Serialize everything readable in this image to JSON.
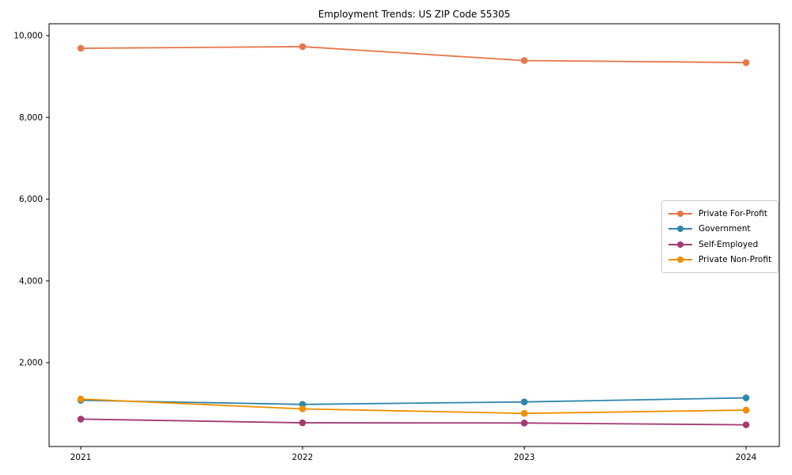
{
  "title": "Employment Trends: US ZIP Code 55305",
  "chart_data": {
    "type": "line",
    "title": "Employment Trends: US ZIP Code 55305",
    "xlabel": "",
    "ylabel": "",
    "x": [
      2021,
      2022,
      2023,
      2024
    ],
    "x_tick_labels": [
      "2021",
      "2022",
      "2023",
      "2024"
    ],
    "y_ticks": [
      2000,
      4000,
      6000,
      8000,
      10000
    ],
    "y_tick_labels": [
      "2,000",
      "4,000",
      "6,000",
      "8,000",
      "10,000"
    ],
    "ylim": [
      -50,
      10290
    ],
    "grid": false,
    "legend_position": "center right",
    "series": [
      {
        "name": "Private For-Profit",
        "color": "#E8764B",
        "values": [
          9690,
          9730,
          9390,
          9340
        ]
      },
      {
        "name": "Government",
        "color": "#2E86AB",
        "values": [
          1080,
          980,
          1040,
          1140
        ]
      },
      {
        "name": "Self-Employed",
        "color": "#A23B72",
        "values": [
          620,
          530,
          525,
          480
        ]
      },
      {
        "name": "Private Non-Profit",
        "color": "#F18F01",
        "values": [
          1110,
          870,
          760,
          840
        ]
      }
    ]
  }
}
